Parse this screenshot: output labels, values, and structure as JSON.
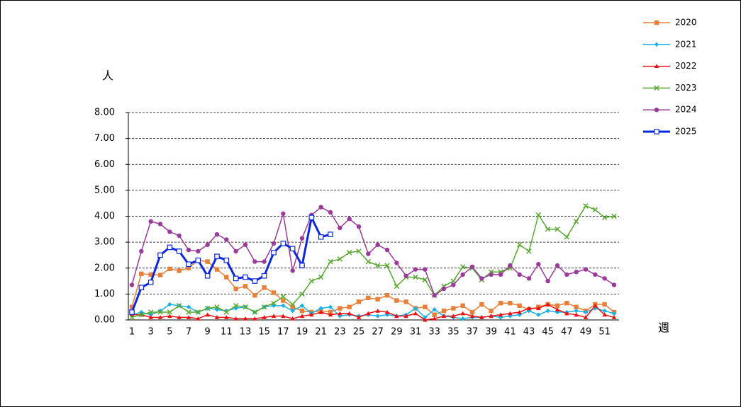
{
  "chart_data": {
    "type": "line",
    "y_label": "人",
    "x_label": "週",
    "categories": [
      1,
      null,
      3,
      null,
      5,
      null,
      7,
      null,
      9,
      null,
      11,
      null,
      13,
      null,
      15,
      null,
      17,
      null,
      19,
      null,
      21,
      null,
      23,
      null,
      25,
      null,
      27,
      null,
      29,
      null,
      31,
      null,
      33,
      null,
      35,
      null,
      37,
      null,
      39,
      null,
      41,
      null,
      43,
      null,
      45,
      null,
      47,
      null,
      49,
      null,
      51,
      null
    ],
    "ylim": [
      0,
      8
    ],
    "yticks": [
      {
        "value": 0,
        "label": "0.00"
      },
      {
        "value": 1,
        "label": "1.00"
      },
      {
        "value": 2,
        "label": "2.00"
      },
      {
        "value": 3,
        "label": "3.00"
      },
      {
        "value": 4,
        "label": "4.00"
      },
      {
        "value": 5,
        "label": "5.00"
      },
      {
        "value": 6,
        "label": "6.00"
      },
      {
        "value": 7,
        "label": "7.00"
      },
      {
        "value": 8,
        "label": "8.00"
      }
    ],
    "grid": true,
    "legend": "right",
    "series": [
      {
        "name": "2020",
        "color": "#e8803a",
        "marker": "square",
        "width": 1.5,
        "values": [
          0.5,
          1.78,
          1.75,
          1.73,
          1.97,
          1.9,
          2.0,
          2.3,
          2.25,
          1.95,
          1.65,
          1.2,
          1.3,
          0.95,
          1.25,
          1.05,
          0.75,
          0.5,
          0.35,
          0.3,
          0.35,
          0.3,
          0.45,
          0.5,
          0.7,
          0.85,
          0.8,
          0.95,
          0.75,
          0.7,
          0.45,
          0.5,
          0.2,
          0.35,
          0.45,
          0.55,
          0.3,
          0.6,
          0.35,
          0.65,
          0.65,
          0.55,
          0.4,
          0.5,
          0.6,
          0.55,
          0.65,
          0.5,
          0.35,
          0.6,
          0.6,
          0.3
        ]
      },
      {
        "name": "2021",
        "color": "#1ab0e8",
        "marker": "diamond",
        "width": 1.5,
        "values": [
          0.2,
          0.3,
          0.2,
          0.35,
          0.6,
          0.55,
          0.5,
          0.3,
          0.45,
          0.4,
          0.35,
          0.45,
          0.5,
          0.3,
          0.5,
          0.55,
          0.55,
          0.35,
          0.55,
          0.25,
          0.45,
          0.5,
          0.15,
          0.2,
          0.15,
          0.2,
          0.15,
          0.2,
          0.15,
          0.2,
          0.45,
          0.1,
          0.4,
          0.15,
          0.1,
          0.05,
          0.1,
          0.1,
          0.15,
          0.1,
          0.15,
          0.2,
          0.35,
          0.2,
          0.35,
          0.3,
          0.3,
          0.35,
          0.3,
          0.45,
          0.35,
          0.25
        ]
      },
      {
        "name": "2022",
        "color": "#e81010",
        "marker": "triangle",
        "width": 1.5,
        "values": [
          0.2,
          0.2,
          0.1,
          0.1,
          0.15,
          0.1,
          0.1,
          0.05,
          0.2,
          0.1,
          0.1,
          0.05,
          0.05,
          0.05,
          0.1,
          0.15,
          0.15,
          0.05,
          0.15,
          0.2,
          0.3,
          0.2,
          0.25,
          0.25,
          0.1,
          0.25,
          0.35,
          0.3,
          0.15,
          0.15,
          0.25,
          0,
          0.05,
          0.15,
          0.15,
          0.25,
          0.15,
          0.1,
          0.15,
          0.2,
          0.25,
          0.3,
          0.45,
          0.45,
          0.6,
          0.4,
          0.25,
          0.2,
          0.1,
          0.55,
          0.2,
          0.1
        ]
      },
      {
        "name": "2023",
        "color": "#58a832",
        "marker": "x",
        "width": 1.5,
        "values": [
          0.1,
          0.2,
          0.3,
          0.3,
          0.3,
          0.55,
          0.3,
          0.3,
          0.45,
          0.5,
          0.3,
          0.55,
          0.5,
          0.3,
          0.5,
          0.65,
          0.9,
          0.6,
          1.0,
          1.5,
          1.65,
          2.25,
          2.35,
          2.6,
          2.65,
          2.25,
          2.1,
          2.1,
          1.3,
          1.65,
          1.65,
          1.55,
          0.95,
          1.3,
          1.5,
          2.05,
          2.0,
          1.55,
          1.85,
          1.85,
          2.0,
          2.9,
          2.65,
          4.05,
          3.5,
          3.5,
          3.2,
          3.8,
          4.4,
          4.25,
          3.95,
          4.0
        ]
      },
      {
        "name": "2024",
        "color": "#9a3a9a",
        "marker": "circle",
        "width": 1.5,
        "values": [
          1.35,
          2.65,
          3.8,
          3.7,
          3.4,
          3.25,
          2.7,
          2.65,
          2.9,
          3.3,
          3.1,
          2.65,
          2.9,
          2.25,
          2.25,
          2.95,
          4.1,
          1.9,
          3.15,
          4.05,
          4.35,
          4.15,
          3.55,
          3.9,
          3.6,
          2.55,
          2.9,
          2.7,
          2.2,
          1.7,
          1.95,
          1.95,
          0.95,
          1.2,
          1.35,
          1.75,
          2.05,
          1.6,
          1.75,
          1.75,
          2.1,
          1.75,
          1.6,
          2.15,
          1.5,
          2.1,
          1.75,
          1.85,
          1.95,
          1.75,
          1.6,
          1.35
        ]
      },
      {
        "name": "2025",
        "color": "#0a28e0",
        "marker": "hollow-square",
        "width": 3,
        "values": [
          0.3,
          1.25,
          1.45,
          2.5,
          2.8,
          2.65,
          2.15,
          2.3,
          1.7,
          2.45,
          2.3,
          1.6,
          1.65,
          1.5,
          1.7,
          2.6,
          2.95,
          2.75,
          2.1,
          3.95,
          3.2,
          3.3,
          null,
          null,
          null,
          null,
          null,
          null,
          null,
          null,
          null,
          null,
          null,
          null,
          null,
          null,
          null,
          null,
          null,
          null,
          null,
          null,
          null,
          null,
          null,
          null,
          null,
          null,
          null,
          null,
          null,
          null
        ]
      }
    ]
  }
}
